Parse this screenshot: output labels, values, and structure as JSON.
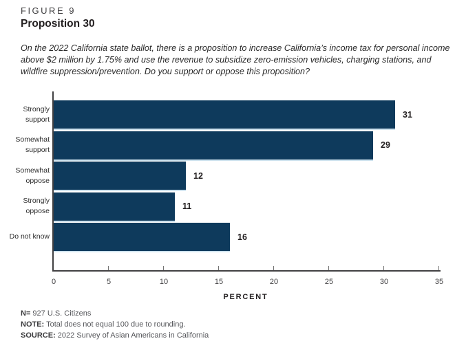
{
  "header": {
    "figure_label": "FIGURE 9",
    "title": "Proposition 30",
    "question": "On the 2022 California state ballot, there is a proposition to increase California’s income tax for personal income above $2 million by 1.75% and use the revenue to subsidize zero-emission vehicles, charging stations, and wildfire suppression/prevention. Do you support or oppose this proposition?"
  },
  "chart_data": {
    "type": "bar",
    "orientation": "horizontal",
    "categories": [
      "Strongly support",
      "Somewhat support",
      "Somewhat oppose",
      "Strongly oppose",
      "Do not know"
    ],
    "display_labels": [
      "Strongly\nsupport",
      "Somewhat\nsupport",
      "Somewhat\noppose",
      "Strongly\noppose",
      "Do not know"
    ],
    "values": [
      31,
      29,
      12,
      11,
      16
    ],
    "xlabel": "PERCENT",
    "xlim": [
      0,
      35
    ],
    "xticks": [
      0,
      5,
      10,
      15,
      20,
      25,
      30,
      35
    ],
    "bar_color": "#0e3a5c",
    "separator_color": "#cfe3ef",
    "grid": false,
    "legend": "none"
  },
  "footer": {
    "n_label": "N=",
    "n_text": " 927 U.S. Citizens",
    "note_label": "NOTE:",
    "note_text": " Total does not equal 100 due to rounding.",
    "source_label": "SOURCE:",
    "source_text": " 2022 Survey of Asian Americans in California"
  }
}
